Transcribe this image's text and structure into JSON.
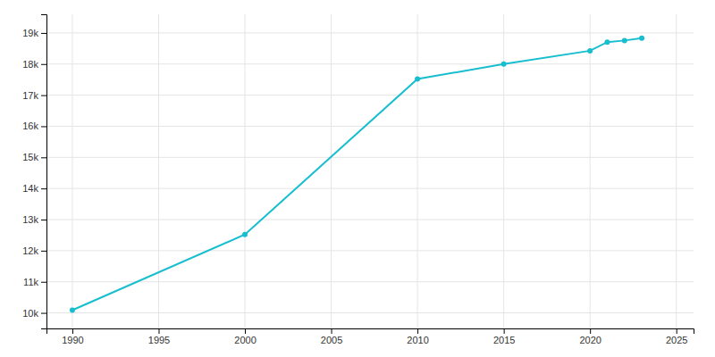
{
  "chart_data": {
    "type": "line",
    "x": [
      1990,
      2000,
      2010,
      2015,
      2020,
      2021,
      2022,
      2023
    ],
    "values": [
      10088,
      12520,
      17519,
      18001,
      18427,
      18706,
      18757,
      18833
    ],
    "color": "#17BECF",
    "marker": "circle",
    "xlim": [
      1988.5,
      2026
    ],
    "ylim": [
      9500,
      19600
    ],
    "xticks": [
      1990,
      1995,
      2000,
      2005,
      2010,
      2015,
      2020,
      2025
    ],
    "yticks": [
      {
        "value": 10000,
        "label": "10k"
      },
      {
        "value": 11000,
        "label": "11k"
      },
      {
        "value": 12000,
        "label": "12k"
      },
      {
        "value": 13000,
        "label": "13k"
      },
      {
        "value": 14000,
        "label": "14k"
      },
      {
        "value": 15000,
        "label": "15k"
      },
      {
        "value": 16000,
        "label": "16k"
      },
      {
        "value": 17000,
        "label": "17k"
      },
      {
        "value": 18000,
        "label": "18k"
      },
      {
        "value": 19000,
        "label": "19k"
      }
    ],
    "grid": true
  }
}
